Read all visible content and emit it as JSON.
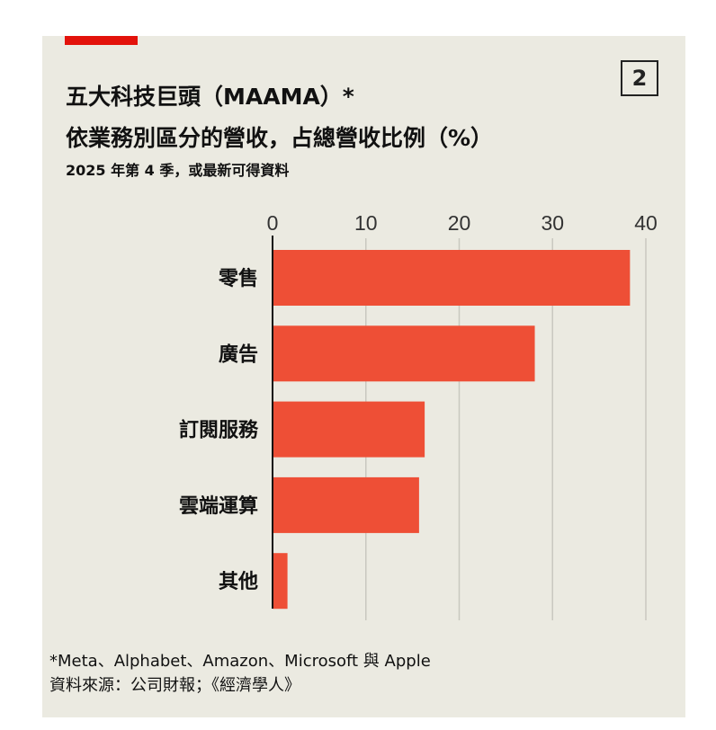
{
  "badge_number": "2",
  "title_line1": "五大科技巨頭（MAAMA）*",
  "title_line2": "依業務別區分的營收，占總營收比例（%）",
  "subtitle": "2025 年第 4 季，或最新可得資料",
  "footnote": "*Meta、Alphabet、Amazon、Microsoft 與 Apple",
  "source": "資料來源：公司財報；《經濟學人》",
  "colors": {
    "bar": "#ee4f36",
    "accent": "#e3120b",
    "background": "#ebeae1"
  },
  "chart_data": {
    "type": "bar",
    "orientation": "horizontal",
    "categories": [
      "零售",
      "廣告",
      "訂閱服務",
      "雲端運算",
      "其他"
    ],
    "values": [
      38.3,
      28.1,
      16.3,
      15.7,
      1.6
    ],
    "xlim": [
      0,
      40
    ],
    "xticks": [
      "0",
      "10",
      "20",
      "30",
      "40"
    ],
    "tick_position": "top",
    "grid": true
  }
}
